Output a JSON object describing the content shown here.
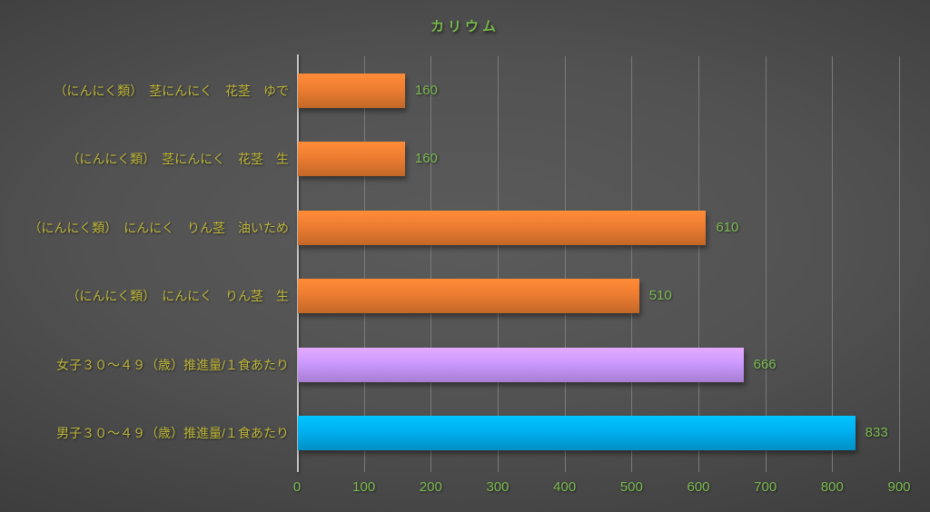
{
  "chart_data": {
    "type": "bar",
    "orientation": "horizontal",
    "title": "カリウム",
    "categories": [
      "（にんにく類）　茎にんにく　花茎　ゆで",
      "（にんにく類）　茎にんにく　花茎　生",
      "（にんにく類）　にんにく　りん茎　油いため",
      "（にんにく類）　にんにく　りん茎　生",
      "女子３０～４９（歳）推進量/１食あたり",
      "男子３０～４９（歳）推進量/１食あたり"
    ],
    "values": [
      160,
      160,
      610,
      510,
      666,
      833
    ],
    "value_labels": [
      "160",
      "160",
      "610",
      "510",
      "666",
      "833"
    ],
    "bar_colors": [
      "#ED7D31",
      "#ED7D31",
      "#ED7D31",
      "#ED7D31",
      "#CC99FF",
      "#00B0F0"
    ],
    "xlim": [
      0,
      900
    ],
    "x_ticks": [
      "0",
      "100",
      "200",
      "300",
      "400",
      "500",
      "600",
      "700",
      "800",
      "900"
    ],
    "grid": true,
    "legend": false
  },
  "colors": {
    "title": "#76B848",
    "category_label": "#BDB63A",
    "value_label": "#7CBB51",
    "tick_label": "#7CBB51",
    "gridline": "#7A7A7A",
    "axis_line": "#C6C6C6"
  }
}
